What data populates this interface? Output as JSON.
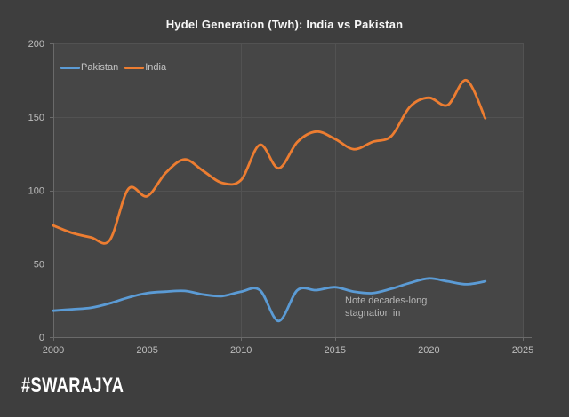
{
  "title": "Hydel Generation (Twh): India vs Pakistan",
  "watermark": {
    "text": "#SWARAJYA"
  },
  "annotation": {
    "text": "Note decades-long stagnation in"
  },
  "colors": {
    "background": "#3E3E3E",
    "plot_background": "#464646",
    "gridline": "#525252",
    "axis": "#6A6A6A",
    "tick_text": "#BDBDBD",
    "title_text": "#F7F7F7",
    "legend_text": "#C4C4C4",
    "annotation_text": "#B5B5B5",
    "watermark_text": "#FFFFFF",
    "pakistan": "#5B9BD5",
    "india": "#ED7D31"
  },
  "chart_data": {
    "type": "line",
    "title": "Hydel Generation (Twh): India vs Pakistan",
    "xlabel": "",
    "ylabel": "",
    "x": [
      2000,
      2001,
      2002,
      2003,
      2004,
      2005,
      2006,
      2007,
      2008,
      2009,
      2010,
      2011,
      2012,
      2013,
      2014,
      2015,
      2016,
      2017,
      2018,
      2019,
      2020,
      2021,
      2022,
      2023
    ],
    "series": [
      {
        "name": "Pakistan",
        "color": "#5B9BD5",
        "values": [
          18,
          19,
          20,
          23,
          27,
          30,
          31,
          31.5,
          29,
          28,
          31,
          32,
          11,
          32,
          32,
          34,
          31,
          30,
          33,
          37,
          40,
          38,
          36,
          38
        ]
      },
      {
        "name": "India",
        "color": "#ED7D31",
        "values": [
          76,
          71,
          68,
          66,
          101,
          96,
          112,
          121,
          113,
          105,
          107,
          131,
          115,
          133,
          140,
          135,
          128,
          133,
          137,
          157,
          163,
          158,
          175,
          149
        ]
      }
    ],
    "xlim": [
      2000,
      2025
    ],
    "ylim": [
      0,
      200
    ],
    "x_ticks": [
      2000,
      2005,
      2010,
      2015,
      2020,
      2025
    ],
    "y_ticks": [
      0,
      50,
      100,
      150,
      200
    ],
    "grid": true,
    "legend_position": "top-left",
    "annotation": "Note decades-long stagnation in"
  }
}
